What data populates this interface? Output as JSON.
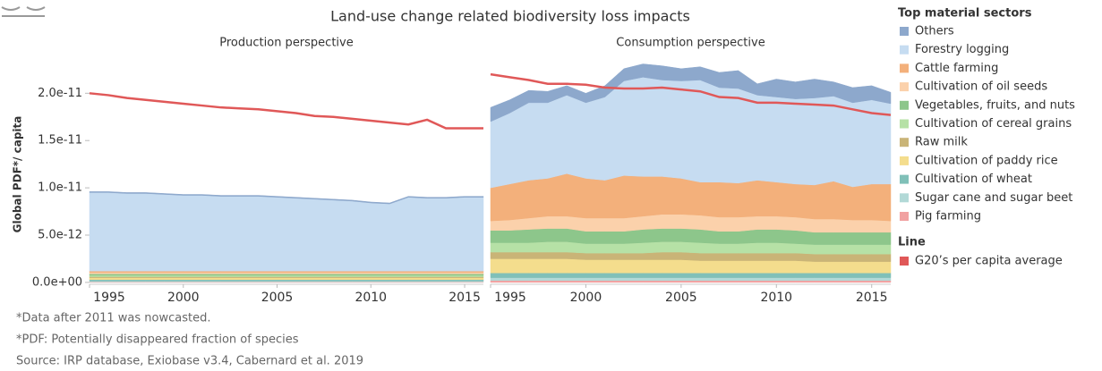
{
  "chart_data": {
    "type": "stacked_area",
    "title": "Land-use change related biodiversity loss impacts",
    "y_label": "Global PDF*/ capita",
    "panels": [
      "Production perspective",
      "Consumption perspective"
    ],
    "x": [
      1995,
      1996,
      1997,
      1998,
      1999,
      2000,
      2001,
      2002,
      2003,
      2004,
      2005,
      2006,
      2007,
      2008,
      2009,
      2010,
      2011,
      2012,
      2013,
      2014,
      2015,
      2016
    ],
    "xlim": [
      1995,
      2016
    ],
    "xticks": [
      1995,
      2000,
      2005,
      2010,
      2015
    ],
    "ylim": [
      -2e-13,
      2.4e-11
    ],
    "yticks": [
      {
        "value": 0,
        "label": "0.0e+00"
      },
      {
        "value": 5e-12,
        "label": "5.0e-12"
      },
      {
        "value": 1e-11,
        "label": "1.0e-11"
      },
      {
        "value": 1.5e-11,
        "label": "1.5e-11"
      },
      {
        "value": 2e-11,
        "label": "2.0e-11"
      }
    ],
    "legend_title": "Top material sectors",
    "line_legend_title": "Line",
    "series": [
      {
        "name": "Others",
        "color": "#8da8cc",
        "values": [
          [
            1e-13,
            1e-13,
            1e-13,
            1e-13,
            1e-13,
            1e-13,
            1e-13,
            1e-13,
            1e-13,
            1e-13,
            1e-13,
            1e-13,
            1e-13,
            1e-13,
            1e-13,
            1e-13,
            1e-13,
            1e-13,
            1e-13,
            1e-13,
            1e-13,
            1e-13
          ],
          [
            1.5e-12,
            1.4e-12,
            1.3e-12,
            1.2e-12,
            1e-12,
            1e-12,
            1.2e-12,
            1.3e-12,
            1.4e-12,
            1.5e-12,
            1.3e-12,
            1.4e-12,
            1.6e-12,
            1.9e-12,
            1.2e-12,
            1.9e-12,
            1.8e-12,
            2e-12,
            1.5e-12,
            1.6e-12,
            1.5e-12,
            1.2e-12
          ]
        ]
      },
      {
        "name": "Forestry logging",
        "color": "#c6dcf1",
        "values": [
          [
            8.3e-12,
            8.3e-12,
            8.2e-12,
            8.2e-12,
            8.1e-12,
            8e-12,
            8e-12,
            7.9e-12,
            7.9e-12,
            7.9e-12,
            7.8e-12,
            7.7e-12,
            7.6e-12,
            7.5e-12,
            7.4e-12,
            7.2e-12,
            7.1e-12,
            7.8e-12,
            7.7e-12,
            7.7e-12,
            7.8e-12,
            7.8e-12
          ],
          [
            7e-12,
            7.5e-12,
            8.2e-12,
            8e-12,
            8.3e-12,
            8e-12,
            8.8e-12,
            1e-11,
            1.05e-11,
            1.02e-11,
            1.03e-11,
            1.08e-11,
            1e-11,
            1e-11,
            9e-12,
            9e-12,
            9e-12,
            9.2e-12,
            9e-12,
            8.9e-12,
            8.9e-12,
            8.5e-12
          ]
        ]
      },
      {
        "name": "Cattle farming",
        "color": "#f3b07b",
        "values": [
          [
            1.5e-13,
            1.5e-13,
            1.5e-13,
            1.5e-13,
            1.5e-13,
            1.5e-13,
            1.5e-13,
            1.5e-13,
            1.5e-13,
            1.5e-13,
            1.5e-13,
            1.5e-13,
            1.5e-13,
            1.5e-13,
            1.5e-13,
            1.5e-13,
            1.5e-13,
            1.5e-13,
            1.5e-13,
            1.5e-13,
            1.5e-13,
            1.5e-13
          ],
          [
            3.5e-12,
            3.8e-12,
            4e-12,
            4e-12,
            4.5e-12,
            4.2e-12,
            4e-12,
            4.5e-12,
            4.2e-12,
            4e-12,
            3.8e-12,
            3.5e-12,
            3.7e-12,
            3.6e-12,
            3.8e-12,
            3.6e-12,
            3.5e-12,
            3.6e-12,
            4e-12,
            3.5e-12,
            3.8e-12,
            3.9e-12
          ]
        ]
      },
      {
        "name": "Cultivation of oil seeds",
        "color": "#fbd1ab",
        "values": [
          [
            1.5e-13,
            1.5e-13,
            1.5e-13,
            1.5e-13,
            1.5e-13,
            1.5e-13,
            1.5e-13,
            1.5e-13,
            1.5e-13,
            1.5e-13,
            1.5e-13,
            1.5e-13,
            1.5e-13,
            1.5e-13,
            1.5e-13,
            1.5e-13,
            1.5e-13,
            1.5e-13,
            1.5e-13,
            1.5e-13,
            1.5e-13,
            1.5e-13
          ],
          [
            1e-12,
            1.1e-12,
            1.2e-12,
            1.3e-12,
            1.3e-12,
            1.4e-12,
            1.4e-12,
            1.4e-12,
            1.4e-12,
            1.5e-12,
            1.5e-12,
            1.5e-12,
            1.5e-12,
            1.5e-12,
            1.4e-12,
            1.4e-12,
            1.4e-12,
            1.4e-12,
            1.4e-12,
            1.3e-12,
            1.3e-12,
            1.2e-12
          ]
        ]
      },
      {
        "name": "Vegetables, fruits, and nuts",
        "color": "#8dc68b",
        "values": [
          [
            1.5e-13,
            1.5e-13,
            1.5e-13,
            1.5e-13,
            1.5e-13,
            1.5e-13,
            1.5e-13,
            1.5e-13,
            1.5e-13,
            1.5e-13,
            1.5e-13,
            1.5e-13,
            1.5e-13,
            1.5e-13,
            1.5e-13,
            1.5e-13,
            1.5e-13,
            1.5e-13,
            1.5e-13,
            1.5e-13,
            1.5e-13,
            1.5e-13
          ],
          [
            1.3e-12,
            1.3e-12,
            1.4e-12,
            1.4e-12,
            1.4e-12,
            1.3e-12,
            1.3e-12,
            1.3e-12,
            1.4e-12,
            1.4e-12,
            1.4e-12,
            1.4e-12,
            1.3e-12,
            1.3e-12,
            1.4e-12,
            1.4e-12,
            1.4e-12,
            1.3e-12,
            1.3e-12,
            1.3e-12,
            1.3e-12,
            1.3e-12
          ]
        ]
      },
      {
        "name": "Cultivation of cereal grains",
        "color": "#b6e1a6",
        "values": [
          [
            1.5e-13,
            1.5e-13,
            1.5e-13,
            1.5e-13,
            1.5e-13,
            1.5e-13,
            1.5e-13,
            1.5e-13,
            1.5e-13,
            1.5e-13,
            1.5e-13,
            1.5e-13,
            1.5e-13,
            1.5e-13,
            1.5e-13,
            1.5e-13,
            1.5e-13,
            1.5e-13,
            1.5e-13,
            1.5e-13,
            1.5e-13,
            1.5e-13
          ],
          [
            1e-12,
            1e-12,
            1e-12,
            1.1e-12,
            1.1e-12,
            1e-12,
            1e-12,
            1e-12,
            1.1e-12,
            1.1e-12,
            1.1e-12,
            1.1e-12,
            1e-12,
            1e-12,
            1.1e-12,
            1.1e-12,
            1e-12,
            1e-12,
            1e-12,
            1e-12,
            1e-12,
            1e-12
          ]
        ]
      },
      {
        "name": "Raw milk",
        "color": "#c9b477",
        "values": [
          [
            1e-13,
            1e-13,
            1e-13,
            1e-13,
            1e-13,
            1e-13,
            1e-13,
            1e-13,
            1e-13,
            1e-13,
            1e-13,
            1e-13,
            1e-13,
            1e-13,
            1e-13,
            1e-13,
            1e-13,
            1e-13,
            1e-13,
            1e-13,
            1e-13,
            1e-13
          ],
          [
            7e-13,
            7e-13,
            7e-13,
            7e-13,
            7e-13,
            7e-13,
            7e-13,
            7e-13,
            7e-13,
            8e-13,
            8e-13,
            8e-13,
            8e-13,
            8e-13,
            8e-13,
            8e-13,
            8e-13,
            8e-13,
            8e-13,
            8e-13,
            8e-13,
            8e-13
          ]
        ]
      },
      {
        "name": "Cultivation of paddy rice",
        "color": "#f4dd8d",
        "values": [
          [
            2e-13,
            2e-13,
            2e-13,
            2e-13,
            2e-13,
            2e-13,
            2e-13,
            2e-13,
            2e-13,
            2e-13,
            2e-13,
            2e-13,
            2e-13,
            2e-13,
            2e-13,
            2e-13,
            2e-13,
            2e-13,
            2e-13,
            2e-13,
            2e-13,
            2e-13
          ],
          [
            1.5e-12,
            1.5e-12,
            1.5e-12,
            1.5e-12,
            1.5e-12,
            1.4e-12,
            1.4e-12,
            1.4e-12,
            1.4e-12,
            1.4e-12,
            1.4e-12,
            1.3e-12,
            1.3e-12,
            1.3e-12,
            1.3e-12,
            1.3e-12,
            1.3e-12,
            1.2e-12,
            1.2e-12,
            1.2e-12,
            1.2e-12,
            1.2e-12
          ]
        ]
      },
      {
        "name": "Cultivation of wheat",
        "color": "#80c0b8",
        "values": [
          [
            1.5e-13,
            1.5e-13,
            1.5e-13,
            1.5e-13,
            1.5e-13,
            1.5e-13,
            1.5e-13,
            1.5e-13,
            1.5e-13,
            1.5e-13,
            1.5e-13,
            1.5e-13,
            1.5e-13,
            1.5e-13,
            1.5e-13,
            1.5e-13,
            1.5e-13,
            1.5e-13,
            1.5e-13,
            1.5e-13,
            1.5e-13,
            1.5e-13
          ],
          [
            5e-13,
            5e-13,
            5e-13,
            5e-13,
            5e-13,
            5e-13,
            5e-13,
            5e-13,
            5e-13,
            5e-13,
            5e-13,
            5e-13,
            5e-13,
            5e-13,
            5e-13,
            5e-13,
            5e-13,
            5e-13,
            5e-13,
            5e-13,
            5e-13,
            5e-13
          ]
        ]
      },
      {
        "name": "Sugar cane and sugar beet",
        "color": "#b2d9d7",
        "values": [
          [
            1e-13,
            1e-13,
            1e-13,
            1e-13,
            1e-13,
            1e-13,
            1e-13,
            1e-13,
            1e-13,
            1e-13,
            1e-13,
            1e-13,
            1e-13,
            1e-13,
            1e-13,
            1e-13,
            1e-13,
            1e-13,
            1e-13,
            1e-13,
            1e-13,
            1e-13
          ],
          [
            3e-13,
            3e-13,
            3e-13,
            3e-13,
            3e-13,
            3e-13,
            3e-13,
            3e-13,
            3e-13,
            3e-13,
            3e-13,
            3e-13,
            3e-13,
            3e-13,
            3e-13,
            3e-13,
            3e-13,
            3e-13,
            3e-13,
            3e-13,
            3e-13,
            3e-13
          ]
        ]
      },
      {
        "name": "Pig farming",
        "color": "#f1a1a1",
        "values": [
          [
            5e-14,
            5e-14,
            5e-14,
            5e-14,
            5e-14,
            5e-14,
            5e-14,
            5e-14,
            5e-14,
            5e-14,
            5e-14,
            5e-14,
            5e-14,
            5e-14,
            5e-14,
            5e-14,
            5e-14,
            5e-14,
            5e-14,
            5e-14,
            5e-14,
            5e-14
          ],
          [
            2e-13,
            2e-13,
            2e-13,
            2e-13,
            2e-13,
            2e-13,
            2e-13,
            2e-13,
            2e-13,
            2e-13,
            2e-13,
            2e-13,
            2e-13,
            2e-13,
            2e-13,
            2e-13,
            2e-13,
            2e-13,
            2e-13,
            2e-13,
            2e-13,
            2e-13
          ]
        ]
      }
    ],
    "line": {
      "name": "G20’s per capita average",
      "color": "#e05858",
      "values": [
        [
          2e-11,
          1.98e-11,
          1.95e-11,
          1.93e-11,
          1.91e-11,
          1.89e-11,
          1.87e-11,
          1.85e-11,
          1.84e-11,
          1.83e-11,
          1.81e-11,
          1.79e-11,
          1.76e-11,
          1.75e-11,
          1.73e-11,
          1.71e-11,
          1.69e-11,
          1.67e-11,
          1.72e-11,
          1.63e-11,
          1.63e-11,
          1.63e-11
        ],
        [
          2.2e-11,
          2.17e-11,
          2.14e-11,
          2.1e-11,
          2.1e-11,
          2.09e-11,
          2.06e-11,
          2.05e-11,
          2.05e-11,
          2.06e-11,
          2.04e-11,
          2.02e-11,
          1.96e-11,
          1.95e-11,
          1.9e-11,
          1.9e-11,
          1.89e-11,
          1.88e-11,
          1.87e-11,
          1.83e-11,
          1.79e-11,
          1.77e-11
        ]
      ]
    },
    "notes": [
      "*Data after 2011 was nowcasted.",
      "*PDF: Potentially disappeared fraction of species",
      "Source: IRP database, Exiobase v3.4, Cabernard et al. 2019"
    ]
  }
}
